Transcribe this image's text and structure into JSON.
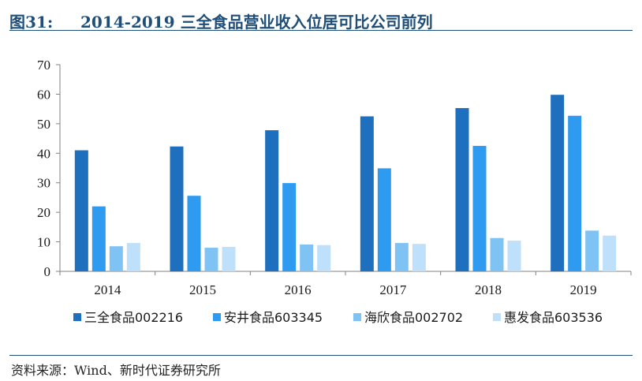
{
  "figure": {
    "number": "图31:",
    "title": "2014-2019 三全食品营业收入位居可比公司前列",
    "source": "资料来源：Wind、新时代证券研究所"
  },
  "chart_data": {
    "type": "bar",
    "title": "2014-2019 三全食品营业收入位居可比公司前列",
    "xlabel": "",
    "ylabel": "",
    "ylim": [
      0,
      70
    ],
    "yticks": [
      "0",
      "10",
      "20",
      "30",
      "40",
      "50",
      "60",
      "70"
    ],
    "categories": [
      "2014",
      "2015",
      "2016",
      "2017",
      "2018",
      "2019"
    ],
    "legend_position": "bottom",
    "grid": false,
    "series": [
      {
        "name": "三全食品002216",
        "color": "#1f6fbf",
        "values": [
          41.0,
          42.3,
          47.8,
          52.5,
          55.3,
          59.8
        ]
      },
      {
        "name": "安井食品603345",
        "color": "#2e9bf0",
        "values": [
          22.0,
          25.6,
          29.9,
          34.9,
          42.5,
          52.7
        ]
      },
      {
        "name": "海欣食品002702",
        "color": "#7fc3f5",
        "values": [
          8.5,
          8.0,
          9.1,
          9.6,
          11.3,
          13.8
        ]
      },
      {
        "name": "惠发食品603536",
        "color": "#bfe0fa",
        "values": [
          9.6,
          8.3,
          8.9,
          9.3,
          10.4,
          12.1
        ]
      }
    ]
  }
}
